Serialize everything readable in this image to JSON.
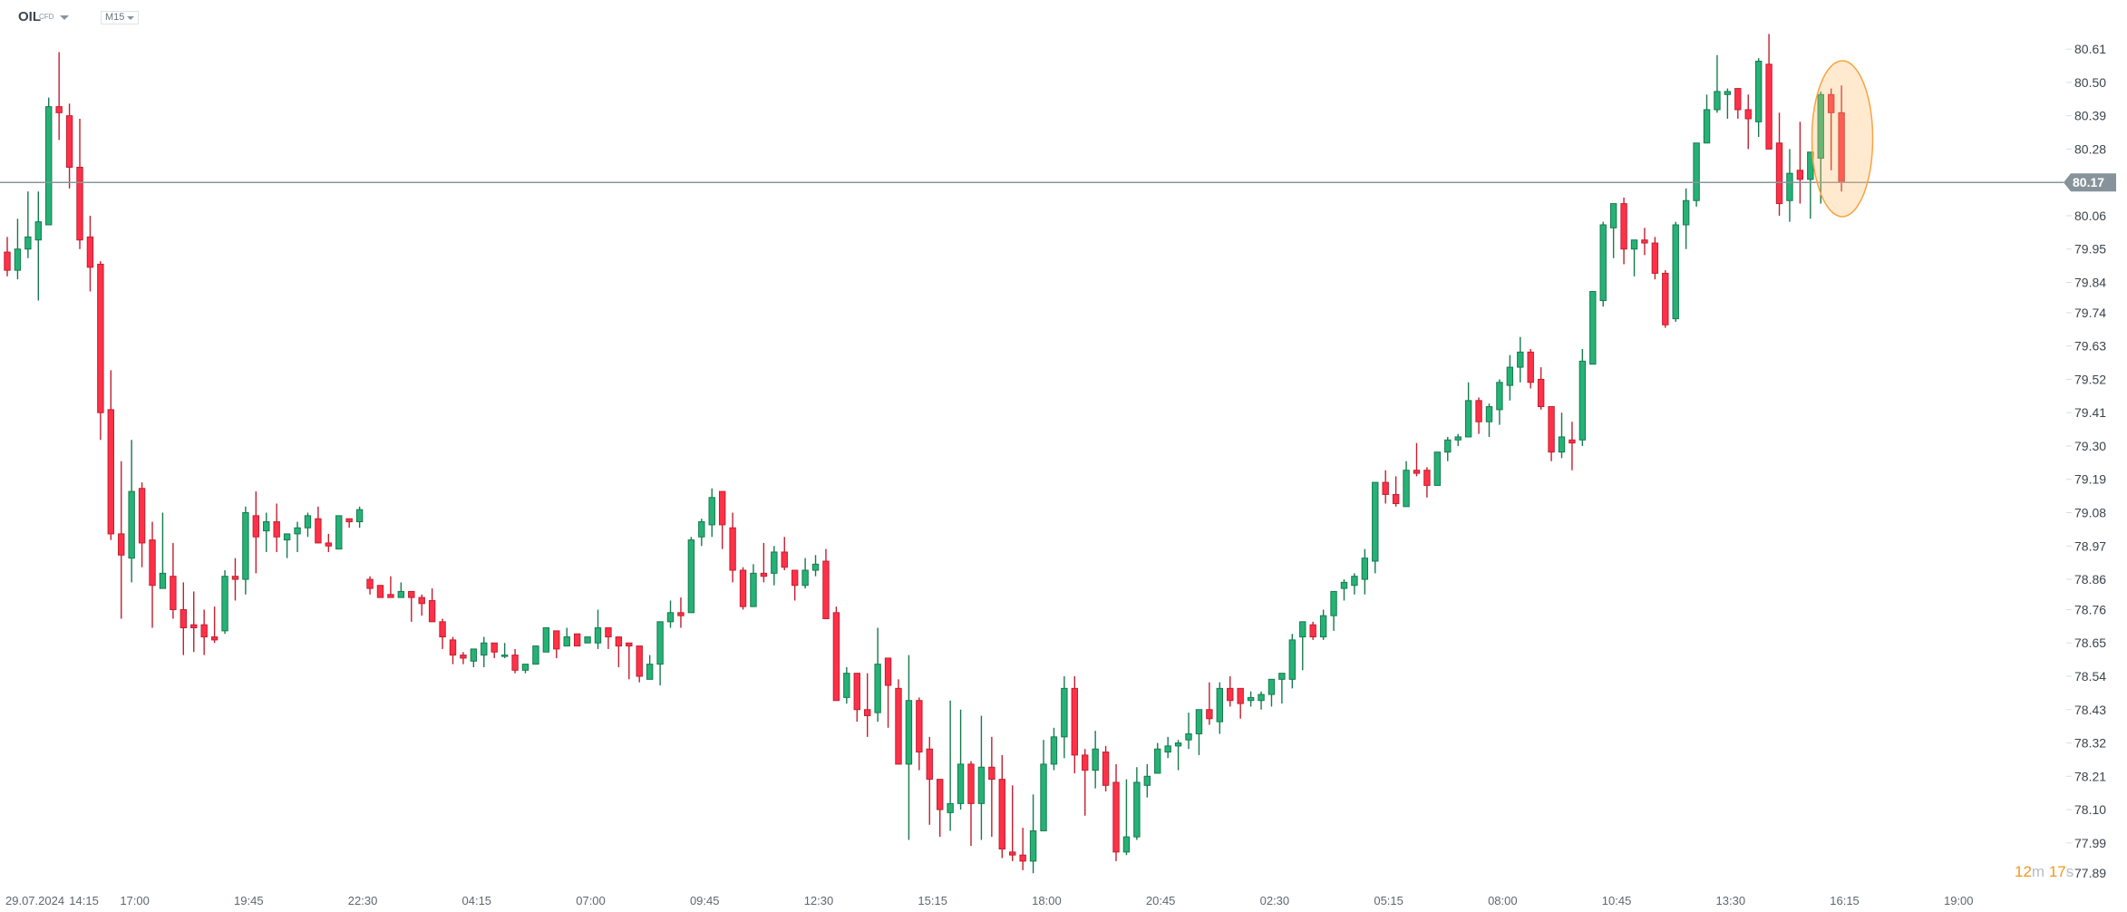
{
  "header": {
    "symbol": "OIL",
    "instrument_type": "CFD",
    "timeframe": "M15"
  },
  "countdown": {
    "minutes": "12",
    "m_unit": "m",
    "seconds": "17",
    "s_unit": "s"
  },
  "colors": {
    "bull": "#26b276",
    "bull_edge": "#167a4f",
    "bear": "#ff3148",
    "bear_edge": "#c21f30",
    "price_line": "#8a959b",
    "highlight": "#f7a440",
    "countdown": "#f7941d"
  },
  "chart_data": {
    "type": "candlestick",
    "title": "OIL CFD M15",
    "ylim": [
      77.89,
      80.61
    ],
    "y_ticks": [
      "80.61",
      "80.50",
      "80.39",
      "80.28",
      "80.06",
      "79.95",
      "79.84",
      "79.74",
      "79.63",
      "79.52",
      "79.41",
      "79.30",
      "79.19",
      "79.08",
      "78.97",
      "78.86",
      "78.76",
      "78.65",
      "78.54",
      "78.43",
      "78.32",
      "78.21",
      "78.10",
      "77.99",
      "77.89"
    ],
    "current_price": "80.17",
    "x_ticks": [
      {
        "label": "29.07.2024",
        "index": 0
      },
      {
        "label": "14:15",
        "index": 7.4
      },
      {
        "label": "17:00",
        "index": 12.3
      },
      {
        "label": "19:45",
        "index": 23.3
      },
      {
        "label": "22:30",
        "index": 34.3
      },
      {
        "label": "04:15",
        "index": 45.3
      },
      {
        "label": "07:00",
        "index": 56.3
      },
      {
        "label": "09:45",
        "index": 67.3
      },
      {
        "label": "12:30",
        "index": 78.3
      },
      {
        "label": "15:15",
        "index": 89.3
      },
      {
        "label": "18:00",
        "index": 100.3
      },
      {
        "label": "20:45",
        "index": 111.3
      },
      {
        "label": "02:30",
        "index": 122.3
      },
      {
        "label": "05:15",
        "index": 133.3
      },
      {
        "label": "08:00",
        "index": 144.3
      },
      {
        "label": "10:45",
        "index": 155.3
      },
      {
        "label": "13:30",
        "index": 166.3
      },
      {
        "label": "16:15",
        "index": 177.3
      },
      {
        "label": "19:00",
        "index": 188.3
      }
    ],
    "ohlc_fields": [
      "open",
      "high",
      "low",
      "close"
    ],
    "candles": [
      [
        79.94,
        79.99,
        79.86,
        79.88
      ],
      [
        79.88,
        80.05,
        79.85,
        79.95
      ],
      [
        79.95,
        80.14,
        79.92,
        79.99
      ],
      [
        79.98,
        80.14,
        79.78,
        80.04
      ],
      [
        80.03,
        80.45,
        80.03,
        80.42
      ],
      [
        80.42,
        80.6,
        80.31,
        80.4
      ],
      [
        80.39,
        80.43,
        80.15,
        80.22
      ],
      [
        80.22,
        80.38,
        79.95,
        79.98
      ],
      [
        79.99,
        80.06,
        79.81,
        79.89
      ],
      [
        79.9,
        79.91,
        79.32,
        79.41
      ],
      [
        79.42,
        79.55,
        78.99,
        79.01
      ],
      [
        79.01,
        79.25,
        78.73,
        78.94
      ],
      [
        78.93,
        79.32,
        78.85,
        79.15
      ],
      [
        79.16,
        79.18,
        78.9,
        78.98
      ],
      [
        78.99,
        79.05,
        78.7,
        78.84
      ],
      [
        78.83,
        79.08,
        78.83,
        78.88
      ],
      [
        78.87,
        78.98,
        78.73,
        78.76
      ],
      [
        78.76,
        78.85,
        78.61,
        78.7
      ],
      [
        78.71,
        78.82,
        78.62,
        78.7
      ],
      [
        78.71,
        78.76,
        78.61,
        78.67
      ],
      [
        78.67,
        78.77,
        78.65,
        78.66
      ],
      [
        78.69,
        78.89,
        78.68,
        78.87
      ],
      [
        78.87,
        78.93,
        78.79,
        78.86
      ],
      [
        78.86,
        79.1,
        78.81,
        79.08
      ],
      [
        79.07,
        79.15,
        78.88,
        79.0
      ],
      [
        79.02,
        79.08,
        78.95,
        79.05
      ],
      [
        79.05,
        79.11,
        78.95,
        79.0
      ],
      [
        78.99,
        79.01,
        78.93,
        79.01
      ],
      [
        79.01,
        79.05,
        78.95,
        79.03
      ],
      [
        79.03,
        79.08,
        79.0,
        79.07
      ],
      [
        79.06,
        79.1,
        78.98,
        78.98
      ],
      [
        78.98,
        79.01,
        78.95,
        78.97
      ],
      [
        78.96,
        79.07,
        78.96,
        79.07
      ],
      [
        79.06,
        79.06,
        79.03,
        79.05
      ],
      [
        79.05,
        79.1,
        79.03,
        79.09
      ],
      [
        78.86,
        78.87,
        78.81,
        78.83
      ],
      [
        78.84,
        78.84,
        78.8,
        78.8
      ],
      [
        78.81,
        78.87,
        78.8,
        78.8
      ],
      [
        78.8,
        78.85,
        78.8,
        78.82
      ],
      [
        78.82,
        78.82,
        78.72,
        78.8
      ],
      [
        78.8,
        78.81,
        78.74,
        78.78
      ],
      [
        78.79,
        78.83,
        78.72,
        78.72
      ],
      [
        78.72,
        78.73,
        78.63,
        78.67
      ],
      [
        78.66,
        78.67,
        78.58,
        78.61
      ],
      [
        78.61,
        78.62,
        78.58,
        78.6
      ],
      [
        78.59,
        78.63,
        78.57,
        78.63
      ],
      [
        78.61,
        78.67,
        78.57,
        78.65
      ],
      [
        78.65,
        78.65,
        78.6,
        78.62
      ],
      [
        78.61,
        78.65,
        78.6,
        78.61
      ],
      [
        78.61,
        78.63,
        78.55,
        78.56
      ],
      [
        78.56,
        78.58,
        78.55,
        78.58
      ],
      [
        78.58,
        78.64,
        78.58,
        78.64
      ],
      [
        78.62,
        78.7,
        78.62,
        78.7
      ],
      [
        78.69,
        78.69,
        78.6,
        78.63
      ],
      [
        78.64,
        78.7,
        78.64,
        78.67
      ],
      [
        78.68,
        78.68,
        78.64,
        78.64
      ],
      [
        78.65,
        78.67,
        78.65,
        78.67
      ],
      [
        78.65,
        78.76,
        78.63,
        78.7
      ],
      [
        78.7,
        78.7,
        78.63,
        78.67
      ],
      [
        78.67,
        78.67,
        78.57,
        78.64
      ],
      [
        78.65,
        78.65,
        78.53,
        78.64
      ],
      [
        78.64,
        78.64,
        78.52,
        78.54
      ],
      [
        78.53,
        78.61,
        78.53,
        78.58
      ],
      [
        78.58,
        78.72,
        78.51,
        78.72
      ],
      [
        78.72,
        78.79,
        78.7,
        78.75
      ],
      [
        78.75,
        78.8,
        78.7,
        78.74
      ],
      [
        78.75,
        79.0,
        78.75,
        78.99
      ],
      [
        79.0,
        79.06,
        78.97,
        79.05
      ],
      [
        79.04,
        79.16,
        79.0,
        79.13
      ],
      [
        79.15,
        79.15,
        78.96,
        79.04
      ],
      [
        79.03,
        79.08,
        78.85,
        78.89
      ],
      [
        78.89,
        78.9,
        78.76,
        78.77
      ],
      [
        78.77,
        78.91,
        78.77,
        78.88
      ],
      [
        78.88,
        78.98,
        78.85,
        78.87
      ],
      [
        78.88,
        78.97,
        78.84,
        78.95
      ],
      [
        78.95,
        79.0,
        78.89,
        78.9
      ],
      [
        78.89,
        78.89,
        78.79,
        78.84
      ],
      [
        78.84,
        78.93,
        78.83,
        78.89
      ],
      [
        78.89,
        78.94,
        78.87,
        78.91
      ],
      [
        78.92,
        78.96,
        78.73,
        78.73
      ],
      [
        78.75,
        78.77,
        78.46,
        78.46
      ],
      [
        78.47,
        78.57,
        78.45,
        78.55
      ],
      [
        78.55,
        78.55,
        78.39,
        78.43
      ],
      [
        78.43,
        78.55,
        78.34,
        78.41
      ],
      [
        78.42,
        78.7,
        78.39,
        78.58
      ],
      [
        78.6,
        78.6,
        78.37,
        78.51
      ],
      [
        78.5,
        78.53,
        78.25,
        78.25
      ],
      [
        78.25,
        78.61,
        78.0,
        78.46
      ],
      [
        78.46,
        78.47,
        78.23,
        78.29
      ],
      [
        78.3,
        78.34,
        78.05,
        78.2
      ],
      [
        78.2,
        78.2,
        78.01,
        78.1
      ],
      [
        78.09,
        78.46,
        78.03,
        78.12
      ],
      [
        78.12,
        78.43,
        78.1,
        78.25
      ],
      [
        78.25,
        78.26,
        77.98,
        78.12
      ],
      [
        78.12,
        78.41,
        78.0,
        78.24
      ],
      [
        78.24,
        78.34,
        78.01,
        78.2
      ],
      [
        78.2,
        78.28,
        77.94,
        77.97
      ],
      [
        77.96,
        78.18,
        77.93,
        77.95
      ],
      [
        77.95,
        78.04,
        77.9,
        77.93
      ],
      [
        77.93,
        78.15,
        77.89,
        78.03
      ],
      [
        78.03,
        78.33,
        78.03,
        78.25
      ],
      [
        78.25,
        78.37,
        78.23,
        78.34
      ],
      [
        78.34,
        78.54,
        78.27,
        78.5
      ],
      [
        78.5,
        78.54,
        78.22,
        78.28
      ],
      [
        78.28,
        78.3,
        78.08,
        78.23
      ],
      [
        78.23,
        78.36,
        78.17,
        78.3
      ],
      [
        78.29,
        78.31,
        78.16,
        78.18
      ],
      [
        78.19,
        78.25,
        77.93,
        77.96
      ],
      [
        77.96,
        78.2,
        77.95,
        78.01
      ],
      [
        78.01,
        78.24,
        78.0,
        78.19
      ],
      [
        78.18,
        78.25,
        78.14,
        78.21
      ],
      [
        78.22,
        78.32,
        78.22,
        78.3
      ],
      [
        78.29,
        78.34,
        78.27,
        78.31
      ],
      [
        78.31,
        78.33,
        78.23,
        78.32
      ],
      [
        78.33,
        78.42,
        78.3,
        78.35
      ],
      [
        78.35,
        78.43,
        78.28,
        78.43
      ],
      [
        78.43,
        78.52,
        78.38,
        78.4
      ],
      [
        78.39,
        78.52,
        78.35,
        78.5
      ],
      [
        78.5,
        78.54,
        78.44,
        78.46
      ],
      [
        78.5,
        78.5,
        78.4,
        78.45
      ],
      [
        78.46,
        78.49,
        78.44,
        78.47
      ],
      [
        78.46,
        78.49,
        78.43,
        78.48
      ],
      [
        78.48,
        78.53,
        78.44,
        78.53
      ],
      [
        78.53,
        78.55,
        78.45,
        78.55
      ],
      [
        78.53,
        78.68,
        78.5,
        78.66
      ],
      [
        78.67,
        78.72,
        78.56,
        78.72
      ],
      [
        78.71,
        78.72,
        78.66,
        78.67
      ],
      [
        78.67,
        78.76,
        78.66,
        78.74
      ],
      [
        78.74,
        78.82,
        78.69,
        78.82
      ],
      [
        78.83,
        78.86,
        78.79,
        78.85
      ],
      [
        78.84,
        78.88,
        78.81,
        78.87
      ],
      [
        78.86,
        78.96,
        78.81,
        78.93
      ],
      [
        78.92,
        79.18,
        78.88,
        79.18
      ],
      [
        79.18,
        79.22,
        79.11,
        79.14
      ],
      [
        79.14,
        79.2,
        79.1,
        79.11
      ],
      [
        79.1,
        79.25,
        79.1,
        79.22
      ],
      [
        79.22,
        79.31,
        79.2,
        79.21
      ],
      [
        79.22,
        79.23,
        79.13,
        79.17
      ],
      [
        79.17,
        79.28,
        79.17,
        79.28
      ],
      [
        79.28,
        79.33,
        79.25,
        79.32
      ],
      [
        79.32,
        79.34,
        79.3,
        79.33
      ],
      [
        79.33,
        79.51,
        79.33,
        79.45
      ],
      [
        79.45,
        79.46,
        79.34,
        79.38
      ],
      [
        79.38,
        79.44,
        79.33,
        79.43
      ],
      [
        79.42,
        79.52,
        79.37,
        79.51
      ],
      [
        79.5,
        79.6,
        79.45,
        79.56
      ],
      [
        79.56,
        79.66,
        79.51,
        79.61
      ],
      [
        79.61,
        79.62,
        79.49,
        79.51
      ],
      [
        79.52,
        79.56,
        79.42,
        79.43
      ],
      [
        79.43,
        79.43,
        79.25,
        79.28
      ],
      [
        79.28,
        79.41,
        79.26,
        79.33
      ],
      [
        79.32,
        79.38,
        79.22,
        79.31
      ],
      [
        79.32,
        79.62,
        79.3,
        79.58
      ],
      [
        79.57,
        79.81,
        79.57,
        79.81
      ],
      [
        79.78,
        80.04,
        79.76,
        80.03
      ],
      [
        80.02,
        80.1,
        79.92,
        80.1
      ],
      [
        80.1,
        80.12,
        79.9,
        79.95
      ],
      [
        79.95,
        79.98,
        79.86,
        79.98
      ],
      [
        79.98,
        80.02,
        79.93,
        79.97
      ],
      [
        79.97,
        79.99,
        79.85,
        79.87
      ],
      [
        79.87,
        79.88,
        79.69,
        79.7
      ],
      [
        79.72,
        80.04,
        79.71,
        80.03
      ],
      [
        80.03,
        80.15,
        79.95,
        80.11
      ],
      [
        80.11,
        80.3,
        80.09,
        80.3
      ],
      [
        80.3,
        80.46,
        80.3,
        80.41
      ],
      [
        80.41,
        80.59,
        80.4,
        80.47
      ],
      [
        80.46,
        80.48,
        80.38,
        80.47
      ],
      [
        80.48,
        80.48,
        80.38,
        80.41
      ],
      [
        80.41,
        80.46,
        80.28,
        80.38
      ],
      [
        80.37,
        80.58,
        80.32,
        80.57
      ],
      [
        80.56,
        80.66,
        80.28,
        80.28
      ],
      [
        80.3,
        80.4,
        80.06,
        80.1
      ],
      [
        80.11,
        80.28,
        80.04,
        80.2
      ],
      [
        80.21,
        80.37,
        80.1,
        80.18
      ],
      [
        80.18,
        80.27,
        80.05,
        80.27
      ],
      [
        80.25,
        80.47,
        80.1,
        80.46
      ],
      [
        80.46,
        80.48,
        80.21,
        80.4
      ],
      [
        80.4,
        80.49,
        80.14,
        80.17
      ]
    ]
  }
}
